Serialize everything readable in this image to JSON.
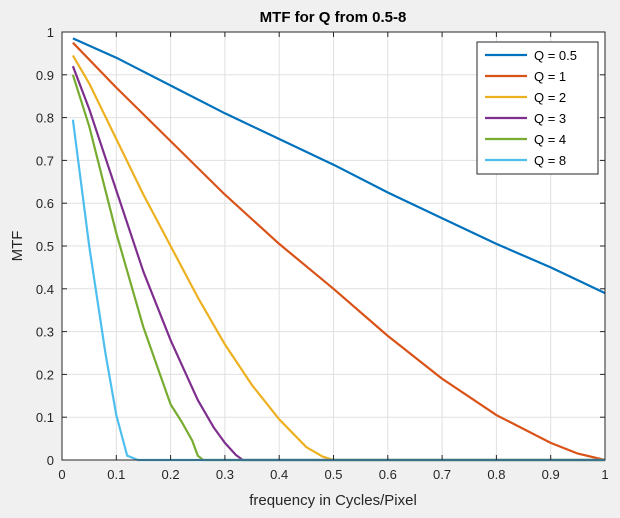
{
  "chart_data": {
    "type": "line",
    "title": "MTF for Q from 0.5-8",
    "xlabel": "frequency in Cycles/Pixel",
    "ylabel": "MTF",
    "xlim": [
      0,
      1
    ],
    "ylim": [
      0,
      1
    ],
    "xticks": [
      "0",
      "0.1",
      "0.2",
      "0.3",
      "0.4",
      "0.5",
      "0.6",
      "0.7",
      "0.8",
      "0.9",
      "1"
    ],
    "yticks": [
      "0",
      "0.1",
      "0.2",
      "0.3",
      "0.4",
      "0.5",
      "0.6",
      "0.7",
      "0.8",
      "0.9",
      "1"
    ],
    "grid": true,
    "legend_position": "top-right",
    "series": [
      {
        "name": "Q = 0.5",
        "color": "#0072bd",
        "x": [
          0.02,
          0.1,
          0.2,
          0.3,
          0.4,
          0.5,
          0.6,
          0.7,
          0.8,
          0.9,
          1.0
        ],
        "y": [
          0.985,
          0.94,
          0.875,
          0.81,
          0.75,
          0.69,
          0.625,
          0.565,
          0.505,
          0.45,
          0.39
        ]
      },
      {
        "name": "Q = 1",
        "color": "#d95319",
        "x": [
          0.02,
          0.1,
          0.2,
          0.3,
          0.4,
          0.5,
          0.6,
          0.7,
          0.8,
          0.9,
          0.95,
          1.0
        ],
        "y": [
          0.975,
          0.87,
          0.745,
          0.62,
          0.505,
          0.4,
          0.29,
          0.19,
          0.105,
          0.04,
          0.015,
          0.0
        ]
      },
      {
        "name": "Q = 2",
        "color": "#edb120",
        "x": [
          0.02,
          0.05,
          0.1,
          0.15,
          0.2,
          0.25,
          0.3,
          0.35,
          0.4,
          0.45,
          0.48,
          0.5,
          1.0
        ],
        "y": [
          0.945,
          0.88,
          0.75,
          0.62,
          0.5,
          0.38,
          0.27,
          0.175,
          0.095,
          0.03,
          0.008,
          0.0,
          0.0
        ]
      },
      {
        "name": "Q = 3",
        "color": "#7e2f8e",
        "x": [
          0.02,
          0.05,
          0.1,
          0.15,
          0.2,
          0.25,
          0.28,
          0.3,
          0.32,
          0.333,
          1.0
        ],
        "y": [
          0.92,
          0.82,
          0.63,
          0.44,
          0.28,
          0.14,
          0.075,
          0.04,
          0.012,
          0.0,
          0.0
        ]
      },
      {
        "name": "Q = 4",
        "color": "#77ac30",
        "x": [
          0.02,
          0.05,
          0.1,
          0.15,
          0.2,
          0.22,
          0.24,
          0.25,
          0.26,
          1.0
        ],
        "y": [
          0.9,
          0.78,
          0.53,
          0.31,
          0.13,
          0.09,
          0.045,
          0.01,
          0.0,
          0.0
        ]
      },
      {
        "name": "Q = 8",
        "color": "#4dbeee",
        "x": [
          0.02,
          0.05,
          0.08,
          0.1,
          0.12,
          0.14,
          1.0
        ],
        "y": [
          0.795,
          0.5,
          0.25,
          0.105,
          0.01,
          0.0,
          0.0
        ]
      }
    ]
  }
}
